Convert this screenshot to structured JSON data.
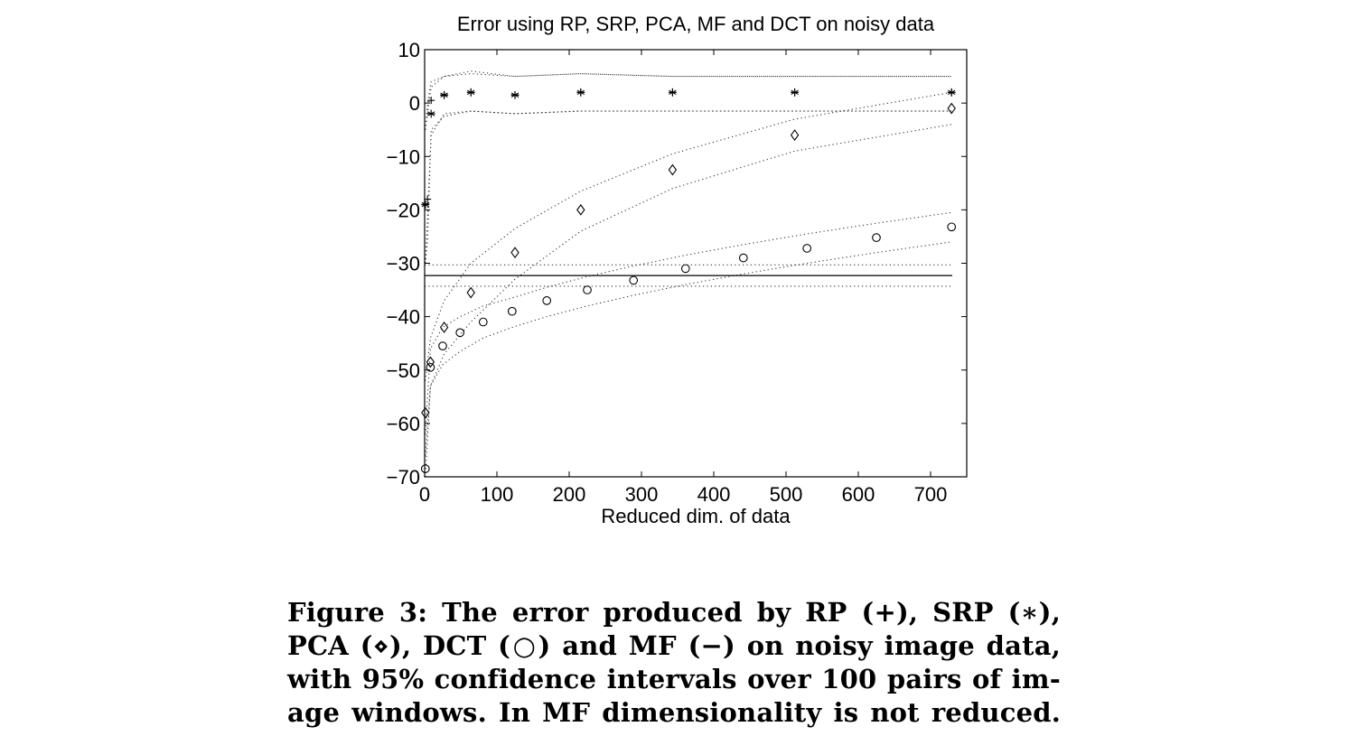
{
  "chart_data": {
    "type": "scatter",
    "title": "Error using RP, SRP, PCA, MF and DCT on noisy data",
    "xlabel": "Reduced dim. of data",
    "ylabel": "",
    "xlim": [
      0,
      750
    ],
    "ylim": [
      -70,
      10
    ],
    "xticks": [
      0,
      100,
      200,
      300,
      400,
      500,
      600,
      700
    ],
    "yticks": [
      -70,
      -60,
      -50,
      -40,
      -30,
      -20,
      -10,
      0,
      10
    ],
    "xtick_labels": [
      "0",
      "100",
      "200",
      "300",
      "400",
      "500",
      "600",
      "700"
    ],
    "ytick_labels": [
      "−70",
      "−60",
      "−50",
      "−40",
      "−30",
      "−20",
      "−10",
      "0",
      "10"
    ],
    "grid": false,
    "legend": "none",
    "series": [
      {
        "marker": "plus",
        "x": [
          1,
          4,
          9,
          27,
          64,
          125,
          216,
          343,
          512,
          729
        ],
        "y": [
          -19,
          -18,
          0.5,
          1.5,
          2,
          1.5,
          2,
          2,
          2,
          2
        ],
        "ci_upper": [
          -5,
          0,
          4,
          5,
          5.5,
          5,
          5.5,
          5,
          5,
          5
        ],
        "ci_lower": [
          -30,
          -26,
          -5,
          -2.5,
          -1.5,
          -2,
          -1.5,
          -1.5,
          -1.5,
          -1.5
        ]
      },
      {
        "marker": "star",
        "x": [
          1,
          9,
          27,
          64,
          125,
          216,
          343,
          512,
          729
        ],
        "y": [
          -19,
          -2,
          1.5,
          2,
          1.5,
          2,
          2,
          2,
          2
        ],
        "ci_upper": [
          -5,
          3,
          5,
          6,
          5,
          5.5,
          5,
          5,
          5
        ],
        "ci_lower": [
          -30,
          -6,
          -2,
          -1.5,
          -2,
          -1.5,
          -1.5,
          -1.5,
          -1.5
        ]
      },
      {
        "marker": "diamond",
        "x": [
          1,
          8,
          27,
          64,
          125,
          216,
          343,
          512,
          729
        ],
        "y": [
          -58,
          -48.5,
          -42,
          -35.5,
          -28,
          -20,
          -12.5,
          -6,
          -1
        ],
        "ci_upper": [
          -52,
          -44,
          -37,
          -30,
          -23.5,
          -16.5,
          -9.5,
          -3,
          2
        ],
        "ci_lower": [
          -66,
          -53,
          -47,
          -41,
          -33,
          -24,
          -16,
          -9,
          -4
        ]
      },
      {
        "marker": "circle",
        "x": [
          1,
          8,
          25,
          49,
          81,
          121,
          169,
          225,
          289,
          361,
          441,
          529,
          625,
          729
        ],
        "y": [
          -68.5,
          -49.5,
          -45.5,
          -43,
          -41,
          -39,
          -37,
          -35,
          -33.2,
          -31,
          -29,
          -27.2,
          -25.2,
          -23.2
        ],
        "ci_upper": [
          -62,
          -46,
          -42,
          -40,
          -38,
          -36.5,
          -34.5,
          -32.5,
          -30.5,
          -28.5,
          -26.5,
          -24.5,
          -22.5,
          -20.5
        ],
        "ci_lower": [
          -70,
          -53,
          -49,
          -46.5,
          -44,
          -42,
          -40,
          -38,
          -36,
          -34,
          -32,
          -30,
          -28,
          -26
        ]
      },
      {
        "marker": "line",
        "x": [
          0,
          730
        ],
        "y": [
          -32.3,
          -32.3
        ],
        "ci_upper": [
          -30.3,
          -30.3
        ],
        "ci_lower": [
          -34.3,
          -34.3
        ]
      }
    ]
  },
  "caption": {
    "lines": [
      "Figure 3: The error produced by RP (+), SRP (∗),",
      "PCA (⋄), DCT (○) and MF (−) on noisy image data,",
      "with 95% confidence intervals over 100 pairs of im-",
      "age windows. In MF dimensionality is not reduced."
    ]
  }
}
